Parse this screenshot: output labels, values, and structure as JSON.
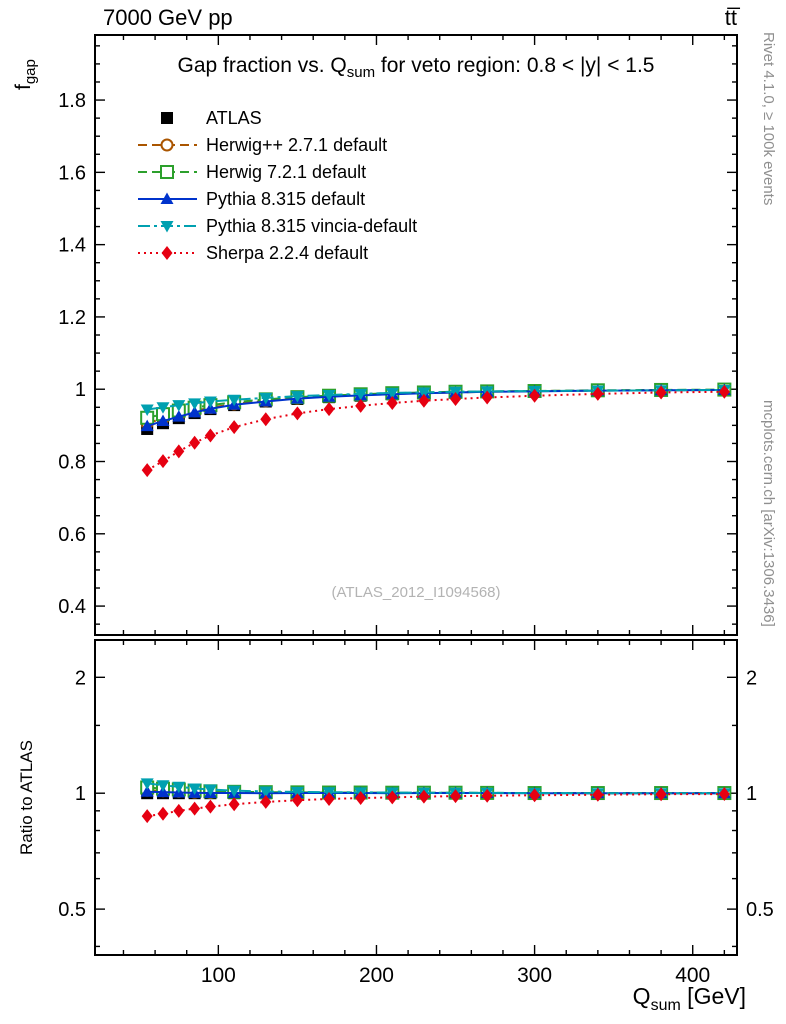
{
  "header": {
    "beam": "7000 GeV pp",
    "process": "tt̅"
  },
  "title": {
    "prefix": "Gap fraction vs. Q",
    "subscript": "sum",
    "suffix": " for veto region: 0.8 < |y| < 1.5"
  },
  "watermark": "(ATLAS_2012_I1094568)",
  "credits": {
    "top": "Rivet 4.1.0, ≥ 100k events",
    "bottom": "mcplots.cern.ch [arXiv:1306.3436]"
  },
  "axes": {
    "y_main": {
      "base": "f",
      "subscript": "gap"
    },
    "y_ratio": "Ratio to ATLAS",
    "x": {
      "base": "Q",
      "subscript": "sum",
      "unit": " [GeV]"
    }
  },
  "chart_data": {
    "type": "line",
    "title": "Gap fraction vs. Q_sum for veto region: 0.8 < |y| < 1.5",
    "xlabel": "Q_sum [GeV]",
    "ylabel": "f_gap",
    "ratio_ylabel": "Ratio to ATLAS",
    "legend_position": "top-left",
    "grid": false,
    "x": [
      55,
      65,
      75,
      85,
      95,
      110,
      130,
      150,
      170,
      190,
      210,
      230,
      250,
      270,
      300,
      340,
      380,
      420
    ],
    "xlim": [
      22,
      428
    ],
    "x_major_ticks": [
      100,
      200,
      300,
      400
    ],
    "x_minor_step": 20,
    "main_panel": {
      "scale": "linear",
      "ylim": [
        0.32,
        1.98
      ],
      "major_ticks": [
        0.4,
        0.6,
        0.8,
        1,
        1.2,
        1.4,
        1.6,
        1.8
      ],
      "minor_step": 0.05
    },
    "ratio_panel": {
      "scale": "log",
      "ylim": [
        0.38,
        2.5
      ],
      "major_ticks": [
        0.5,
        1,
        2
      ],
      "minor_ticks": [
        0.4,
        0.6,
        0.7,
        0.8,
        0.9,
        1.5
      ]
    },
    "series": [
      {
        "name": "ATLAS",
        "color": "#000000",
        "marker": "square-filled",
        "line": "none",
        "values": [
          0.89,
          0.906,
          0.92,
          0.934,
          0.945,
          0.956,
          0.966,
          0.973,
          0.978,
          0.982,
          0.986,
          0.988,
          0.99,
          0.992,
          0.994,
          0.996,
          0.997,
          0.998
        ]
      },
      {
        "name": "Herwig++ 2.7.1 default",
        "color": "#aa5500",
        "marker": "circle-open",
        "line": "dash",
        "values": [
          0.906,
          0.919,
          0.93,
          0.94,
          0.949,
          0.959,
          0.968,
          0.975,
          0.98,
          0.984,
          0.987,
          0.989,
          0.991,
          0.993,
          0.995,
          0.996,
          0.997,
          0.998
        ]
      },
      {
        "name": "Herwig 7.2.1 default",
        "color": "#2ca02c",
        "marker": "square-open",
        "line": "dash",
        "values": [
          0.921,
          0.931,
          0.941,
          0.949,
          0.956,
          0.964,
          0.972,
          0.978,
          0.982,
          0.986,
          0.989,
          0.991,
          0.993,
          0.994,
          0.995,
          0.997,
          0.998,
          0.999
        ]
      },
      {
        "name": "Pythia 8.315 default",
        "color": "#0033cc",
        "marker": "triangle-up-filled",
        "line": "solid",
        "values": [
          0.898,
          0.912,
          0.924,
          0.936,
          0.946,
          0.957,
          0.966,
          0.974,
          0.979,
          0.983,
          0.986,
          0.989,
          0.991,
          0.993,
          0.994,
          0.996,
          0.997,
          0.998
        ]
      },
      {
        "name": "Pythia 8.315 vincia-default",
        "color": "#00a0b0",
        "marker": "triangle-down-filled",
        "line": "dashdot",
        "values": [
          0.944,
          0.95,
          0.956,
          0.961,
          0.966,
          0.971,
          0.976,
          0.981,
          0.984,
          0.987,
          0.99,
          0.991,
          0.993,
          0.994,
          0.995,
          0.996,
          0.997,
          0.998
        ]
      },
      {
        "name": "Sherpa 2.2.4 default",
        "color": "#e60011",
        "marker": "diamond-filled",
        "line": "dot",
        "values": [
          0.776,
          0.801,
          0.828,
          0.852,
          0.872,
          0.895,
          0.917,
          0.933,
          0.945,
          0.954,
          0.962,
          0.968,
          0.973,
          0.977,
          0.982,
          0.987,
          0.991,
          0.993
        ]
      }
    ],
    "ratio_note": "ratio series = values / ATLAS values"
  }
}
